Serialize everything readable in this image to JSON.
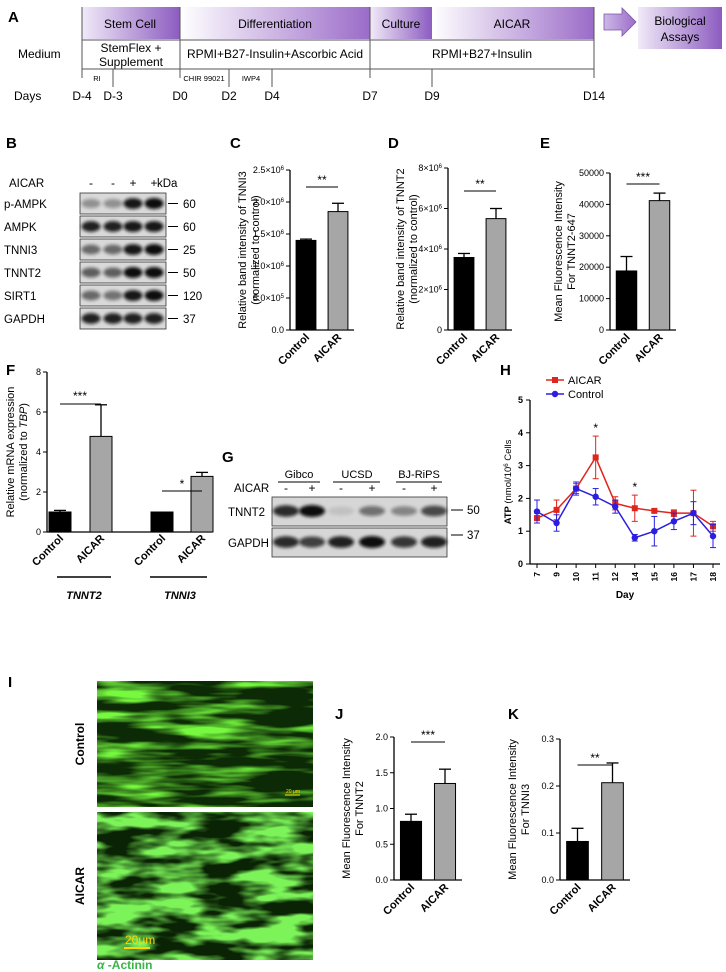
{
  "panels": {
    "A": {
      "letter": "A",
      "phases": [
        "Stem Cell",
        "Differentiation",
        "Culture",
        "AICAR"
      ],
      "assays_label": "Biological Assays",
      "medium_label": "Medium",
      "medium_entries": [
        "StemFlex + Supplement",
        "RPMI+B27-Insulin+Ascorbic Acid",
        "RPMI+B27+Insulin"
      ],
      "small_labels": [
        "RI",
        "CHIR 99021",
        "IWP4"
      ],
      "days_label": "Days",
      "days": [
        "D-4",
        "D-3",
        "D0",
        "D2",
        "D4",
        "D7",
        "D9",
        "D14"
      ]
    },
    "B": {
      "letter": "B",
      "aicar_label": "AICAR",
      "kda_label": "kDa",
      "treatment": [
        "-",
        "-",
        "+",
        "+"
      ],
      "rows": [
        {
          "name": "p-AMPK",
          "kda": "60"
        },
        {
          "name": "AMPK",
          "kda": "60"
        },
        {
          "name": "TNNI3",
          "kda": "25"
        },
        {
          "name": "TNNT2",
          "kda": "50"
        },
        {
          "name": "SIRT1",
          "kda": "120"
        },
        {
          "name": "GAPDH",
          "kda": "37"
        }
      ]
    },
    "G": {
      "letter": "G",
      "aicar_label": "AICAR",
      "groups": [
        "Gibco",
        "UCSD",
        "BJ-RiPS"
      ],
      "signs": [
        "-",
        "+",
        "-",
        "+",
        "-",
        "+"
      ],
      "rows": [
        {
          "name": "TNNT2",
          "kda": "50"
        },
        {
          "name": "GAPDH",
          "kda": "37"
        }
      ]
    },
    "I": {
      "letter": "I",
      "rows": [
        "Control",
        "AICAR"
      ],
      "scale_bar_big": "20μm",
      "scale_bar_small": "20 μm",
      "stain_greek": "α",
      "stain_name": " -Actinin"
    }
  },
  "chart_data": [
    {
      "panel": "C",
      "type": "bar",
      "ylabel_line1": "Relative band intensity of TNNI3",
      "ylabel_line2": "(normalized to control)",
      "categories": [
        "Control",
        "AICAR"
      ],
      "values": [
        1400000,
        1850000
      ],
      "errors": [
        20000,
        130000
      ],
      "ylim": [
        0,
        2500000
      ],
      "yticks": [
        0,
        500000,
        1000000,
        1500000,
        2000000,
        2500000
      ],
      "ytick_labels": [
        {
          "m": "0.0",
          "e": ""
        },
        {
          "m": "5.0×10",
          "e": "5"
        },
        {
          "m": "1.0×10",
          "e": "6"
        },
        {
          "m": "1.5×10",
          "e": "6"
        },
        {
          "m": "2.0×10",
          "e": "6"
        },
        {
          "m": "2.5×10",
          "e": "6"
        }
      ],
      "significance": "**",
      "colors": [
        "#000000",
        "#a6a6a6"
      ]
    },
    {
      "panel": "D",
      "type": "bar",
      "ylabel_line1": "Relative band intensity of TNNT2",
      "ylabel_line2": "(normalized to control)",
      "categories": [
        "Control",
        "AICAR"
      ],
      "values": [
        3580000,
        5500000
      ],
      "errors": [
        200000,
        500000
      ],
      "ylim": [
        0,
        8000000
      ],
      "yticks": [
        0,
        2000000,
        4000000,
        6000000,
        8000000
      ],
      "ytick_labels": [
        {
          "m": "0",
          "e": ""
        },
        {
          "m": "2×10",
          "e": "6"
        },
        {
          "m": "4×10",
          "e": "6"
        },
        {
          "m": "6×10",
          "e": "6"
        },
        {
          "m": "8×10",
          "e": "6"
        }
      ],
      "significance": "**",
      "colors": [
        "#000000",
        "#a6a6a6"
      ]
    },
    {
      "panel": "E",
      "type": "bar",
      "ylabel_line1": "Mean Fluorescence Intensity",
      "ylabel_line2": "For TNNT2-647",
      "categories": [
        "Control",
        "AICAR"
      ],
      "values": [
        18800,
        41200
      ],
      "errors": [
        4600,
        2400
      ],
      "ylim": [
        0,
        50000
      ],
      "yticks": [
        0,
        10000,
        20000,
        30000,
        40000,
        50000
      ],
      "ytick_labels": [
        {
          "m": "0",
          "e": ""
        },
        {
          "m": "10000",
          "e": ""
        },
        {
          "m": "20000",
          "e": ""
        },
        {
          "m": "30000",
          "e": ""
        },
        {
          "m": "40000",
          "e": ""
        },
        {
          "m": "50000",
          "e": ""
        }
      ],
      "significance": "***",
      "colors": [
        "#000000",
        "#a6a6a6"
      ]
    },
    {
      "panel": "F",
      "type": "bar",
      "ylabel_line1": "Relative mRNA expression",
      "ylabel_pre": "(normalized to ",
      "ylabel_ital": "TBP",
      "ylabel_post": ")",
      "categories": [
        "Control",
        "AICAR",
        "Control",
        "AICAR"
      ],
      "groups": [
        "TNNT2",
        "TNNI3"
      ],
      "values": [
        1.0,
        4.78,
        1.0,
        2.78
      ],
      "errors": [
        0.08,
        1.58,
        0.0,
        0.2
      ],
      "ylim": [
        0,
        8
      ],
      "yticks": [
        0,
        2,
        4,
        6,
        8
      ],
      "ytick_labels": [
        {
          "m": "0",
          "e": ""
        },
        {
          "m": "2",
          "e": ""
        },
        {
          "m": "4",
          "e": ""
        },
        {
          "m": "6",
          "e": ""
        },
        {
          "m": "8",
          "e": ""
        }
      ],
      "significance": [
        "***",
        "*"
      ],
      "colors": [
        "#000000",
        "#a6a6a6"
      ]
    },
    {
      "panel": "H",
      "type": "line",
      "ylabel_pre": "ATP ",
      "ylabel_unit_a": "(nmol/10",
      "ylabel_unit_sup": "6",
      "ylabel_unit_b": " Cells",
      "xlabel": "Day",
      "x": [
        7,
        9,
        10,
        11,
        12,
        14,
        15,
        16,
        17,
        18
      ],
      "ylim": [
        0,
        5
      ],
      "yticks": [
        0,
        1,
        2,
        3,
        4,
        5
      ],
      "series": [
        {
          "name": "AICAR",
          "color": "#e0261c",
          "marker": "square",
          "values": [
            1.4,
            1.65,
            2.3,
            3.25,
            1.85,
            1.7,
            1.62,
            1.55,
            1.55,
            1.15
          ],
          "errors": [
            0.15,
            0.3,
            0.15,
            0.65,
            0.2,
            0.4,
            0.05,
            0.1,
            0.7,
            0.15
          ]
        },
        {
          "name": "Control",
          "color": "#2b1ee0",
          "marker": "circle",
          "values": [
            1.6,
            1.25,
            2.3,
            2.05,
            1.75,
            0.8,
            1.0,
            1.3,
            1.55,
            0.85
          ],
          "errors": [
            0.35,
            0.25,
            0.2,
            0.25,
            0.2,
            0.1,
            0.45,
            0.25,
            0.35,
            0.35
          ]
        }
      ],
      "significance": [
        {
          "x": 11,
          "label": "*"
        },
        {
          "x": 14,
          "label": "*"
        }
      ]
    },
    {
      "panel": "J",
      "type": "bar",
      "ylabel_line1": "Mean Fluorescence Intensity",
      "ylabel_line2": "For TNNT2",
      "categories": [
        "Control",
        "AICAR"
      ],
      "values": [
        0.82,
        1.35
      ],
      "errors": [
        0.1,
        0.2
      ],
      "ylim": [
        0,
        2.0
      ],
      "yticks": [
        0,
        0.5,
        1.0,
        1.5,
        2.0
      ],
      "ytick_labels": [
        {
          "m": "0.0",
          "e": ""
        },
        {
          "m": "0.5",
          "e": ""
        },
        {
          "m": "1.0",
          "e": ""
        },
        {
          "m": "1.5",
          "e": ""
        },
        {
          "m": "2.0",
          "e": ""
        }
      ],
      "significance": "***",
      "colors": [
        "#000000",
        "#a6a6a6"
      ]
    },
    {
      "panel": "K",
      "type": "bar",
      "ylabel_line1": "Mean Fluorescence Intensity",
      "ylabel_line2": "For TNNI3",
      "categories": [
        "Control",
        "AICAR"
      ],
      "values": [
        0.082,
        0.207
      ],
      "errors": [
        0.028,
        0.042
      ],
      "ylim": [
        0,
        0.3
      ],
      "yticks": [
        0,
        0.1,
        0.2,
        0.3
      ],
      "ytick_labels": [
        {
          "m": "0.0",
          "e": ""
        },
        {
          "m": "0.1",
          "e": ""
        },
        {
          "m": "0.2",
          "e": ""
        },
        {
          "m": "0.3",
          "e": ""
        }
      ],
      "significance": "**",
      "colors": [
        "#000000",
        "#a6a6a6"
      ]
    }
  ]
}
